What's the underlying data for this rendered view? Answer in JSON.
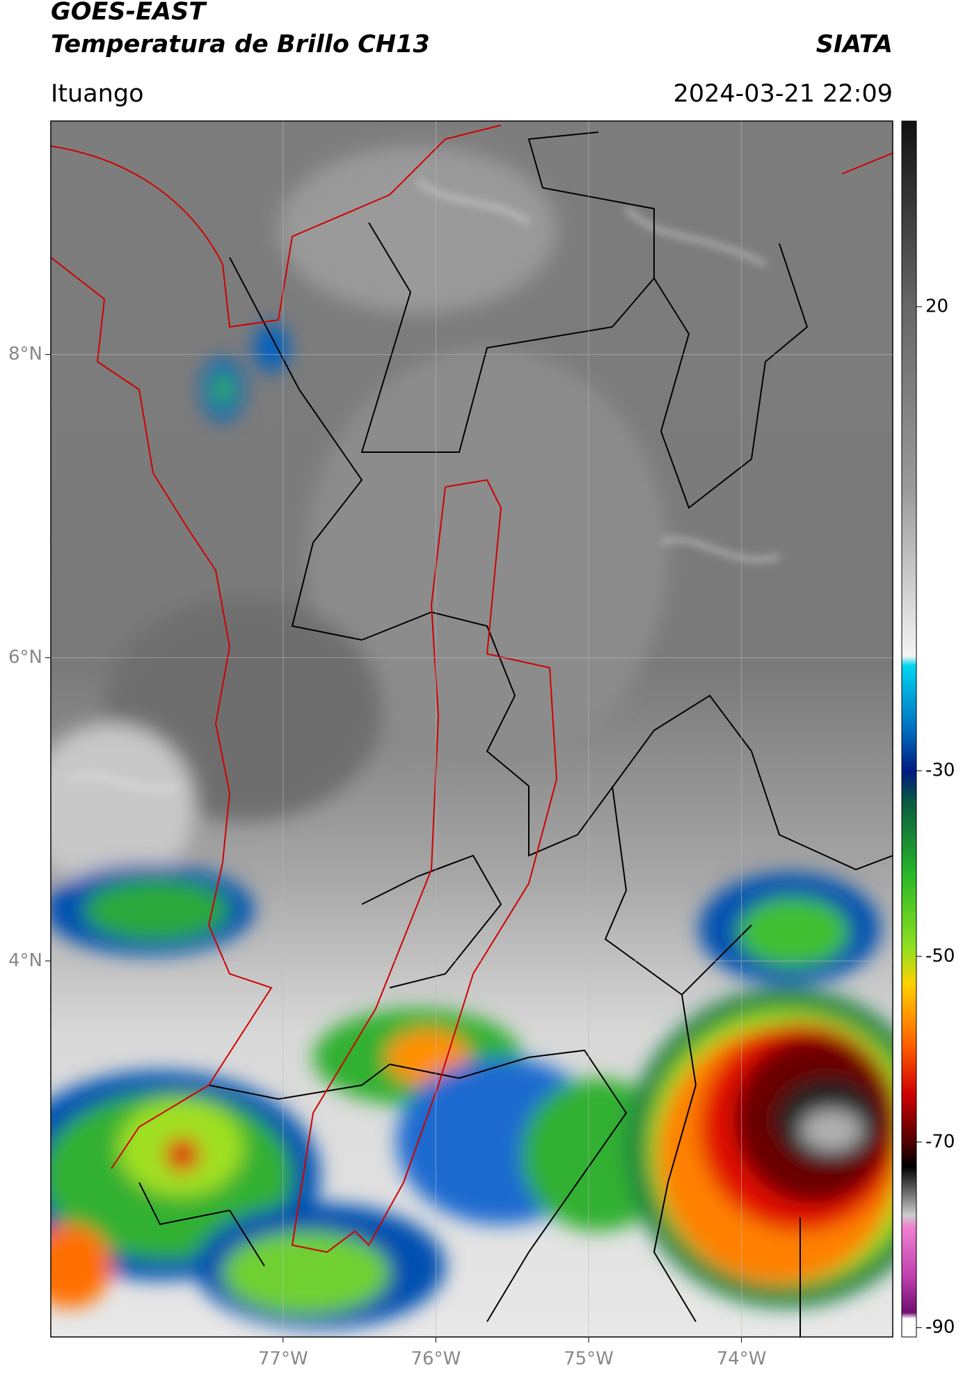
{
  "header": {
    "title": "GOES-EAST",
    "subtitle": "Temperatura de Brillo CH13",
    "source": "SIATA",
    "location": "Ituango",
    "datetime": "2024-03-21 22:09"
  },
  "map": {
    "xlim": [
      -78.52,
      -73.01
    ],
    "ylim": [
      1.52,
      9.54
    ],
    "xticks": [
      {
        "value": -77,
        "label": "77°W"
      },
      {
        "value": -76,
        "label": "76°W"
      },
      {
        "value": -75,
        "label": "75°W"
      },
      {
        "value": -74,
        "label": "74°W"
      }
    ],
    "yticks": [
      {
        "value": 4,
        "label": "4°N"
      },
      {
        "value": 6,
        "label": "6°N"
      },
      {
        "value": 8,
        "label": "8°N"
      }
    ],
    "grid": true
  },
  "colorbar": {
    "lim": [
      -91,
      40
    ],
    "ticks": [
      20,
      -30,
      -50,
      -70,
      -90
    ]
  }
}
